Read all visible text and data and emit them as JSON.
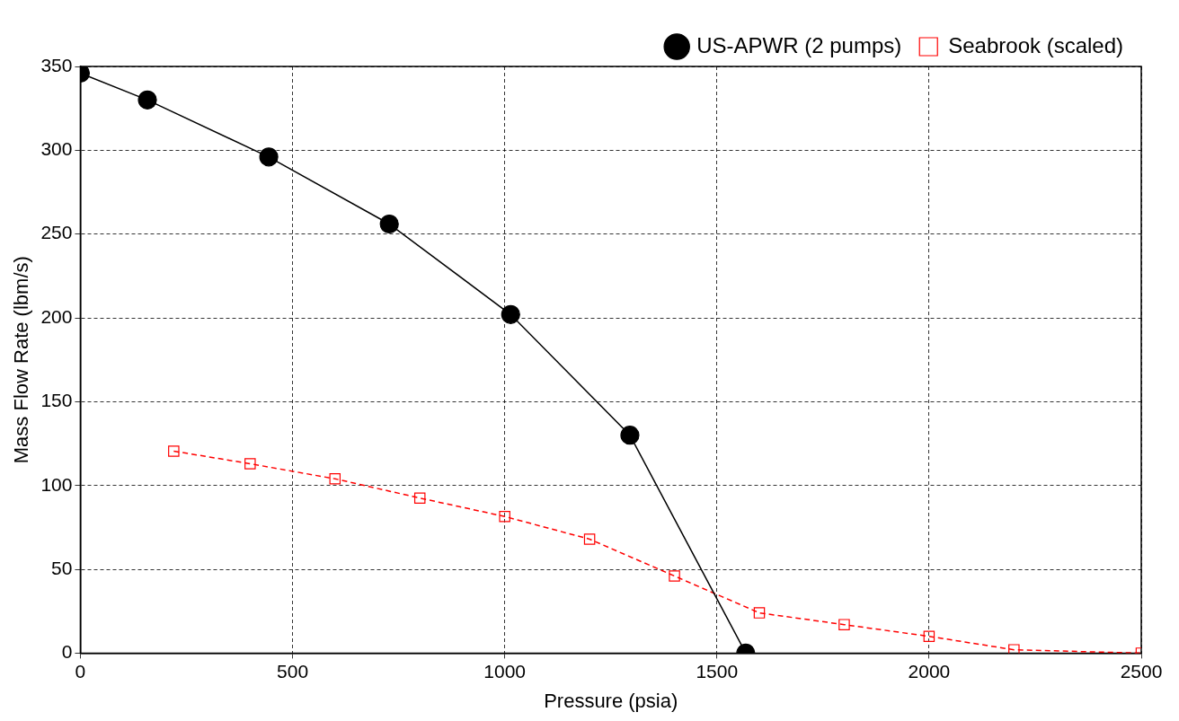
{
  "chart_data": {
    "type": "line",
    "xlabel": "Pressure (psia)",
    "ylabel": "Mass Flow Rate (lbm/s)",
    "xlim": [
      0,
      2500
    ],
    "xticks": [
      0,
      500,
      1000,
      1500,
      2000,
      2500
    ],
    "ylim": [
      0,
      350
    ],
    "yticks": [
      0,
      50,
      100,
      150,
      200,
      250,
      300,
      350
    ],
    "grid": true,
    "legend": "top right",
    "series": [
      {
        "name": "US-APWR (2 pumps)",
        "color": "#000000",
        "marker": "circle",
        "line_style": "solid",
        "x": [
          0,
          158,
          444,
          728,
          1014,
          1295,
          1568
        ],
        "values": [
          346,
          330,
          296,
          256,
          202,
          130,
          0
        ]
      },
      {
        "name": "Seabrook (scaled)",
        "color": "#ff0000",
        "marker": "square",
        "line_style": "dashed",
        "x": [
          220,
          400,
          600,
          800,
          1000,
          1200,
          1400,
          1600,
          1800,
          2000,
          2200,
          2500
        ],
        "values": [
          120.5,
          113,
          104,
          92.5,
          81.5,
          68,
          46,
          24,
          17,
          10,
          2,
          0
        ]
      }
    ]
  }
}
